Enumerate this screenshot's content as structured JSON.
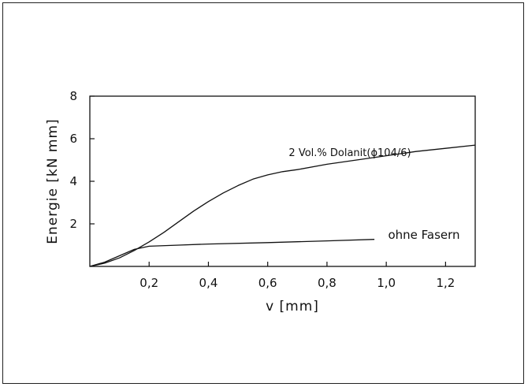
{
  "chart_data": {
    "type": "line",
    "title": "",
    "xlabel": "v  [mm]",
    "ylabel": "Energie  [kN mm]",
    "xlim": [
      0,
      1.3
    ],
    "ylim": [
      0,
      8
    ],
    "x_ticks": [
      0.2,
      0.4,
      0.6,
      0.8,
      1.0,
      1.2
    ],
    "x_tick_labels": [
      "0,2",
      "0,4",
      "0,6",
      "0,8",
      "1,0",
      "1,2"
    ],
    "y_ticks": [
      2,
      4,
      6,
      8
    ],
    "y_tick_labels": [
      "2",
      "4",
      "6",
      "8"
    ],
    "grid": false,
    "series": [
      {
        "name": "2 Vol.% Dolanit(ϕ104/6)",
        "x": [
          0,
          0.05,
          0.1,
          0.15,
          0.2,
          0.25,
          0.3,
          0.35,
          0.4,
          0.45,
          0.5,
          0.55,
          0.6,
          0.65,
          0.7,
          0.8,
          0.9,
          1.0,
          1.1,
          1.2,
          1.3
        ],
        "y": [
          0,
          0.15,
          0.4,
          0.75,
          1.15,
          1.6,
          2.1,
          2.6,
          3.05,
          3.45,
          3.8,
          4.1,
          4.3,
          4.45,
          4.55,
          4.8,
          5.0,
          5.2,
          5.4,
          5.55,
          5.7
        ]
      },
      {
        "name": "ohne Fasern",
        "x": [
          0,
          0.05,
          0.1,
          0.15,
          0.2,
          0.3,
          0.4,
          0.6,
          0.8,
          0.96
        ],
        "y": [
          0,
          0.2,
          0.5,
          0.8,
          0.95,
          1.0,
          1.05,
          1.12,
          1.2,
          1.27
        ]
      }
    ]
  }
}
